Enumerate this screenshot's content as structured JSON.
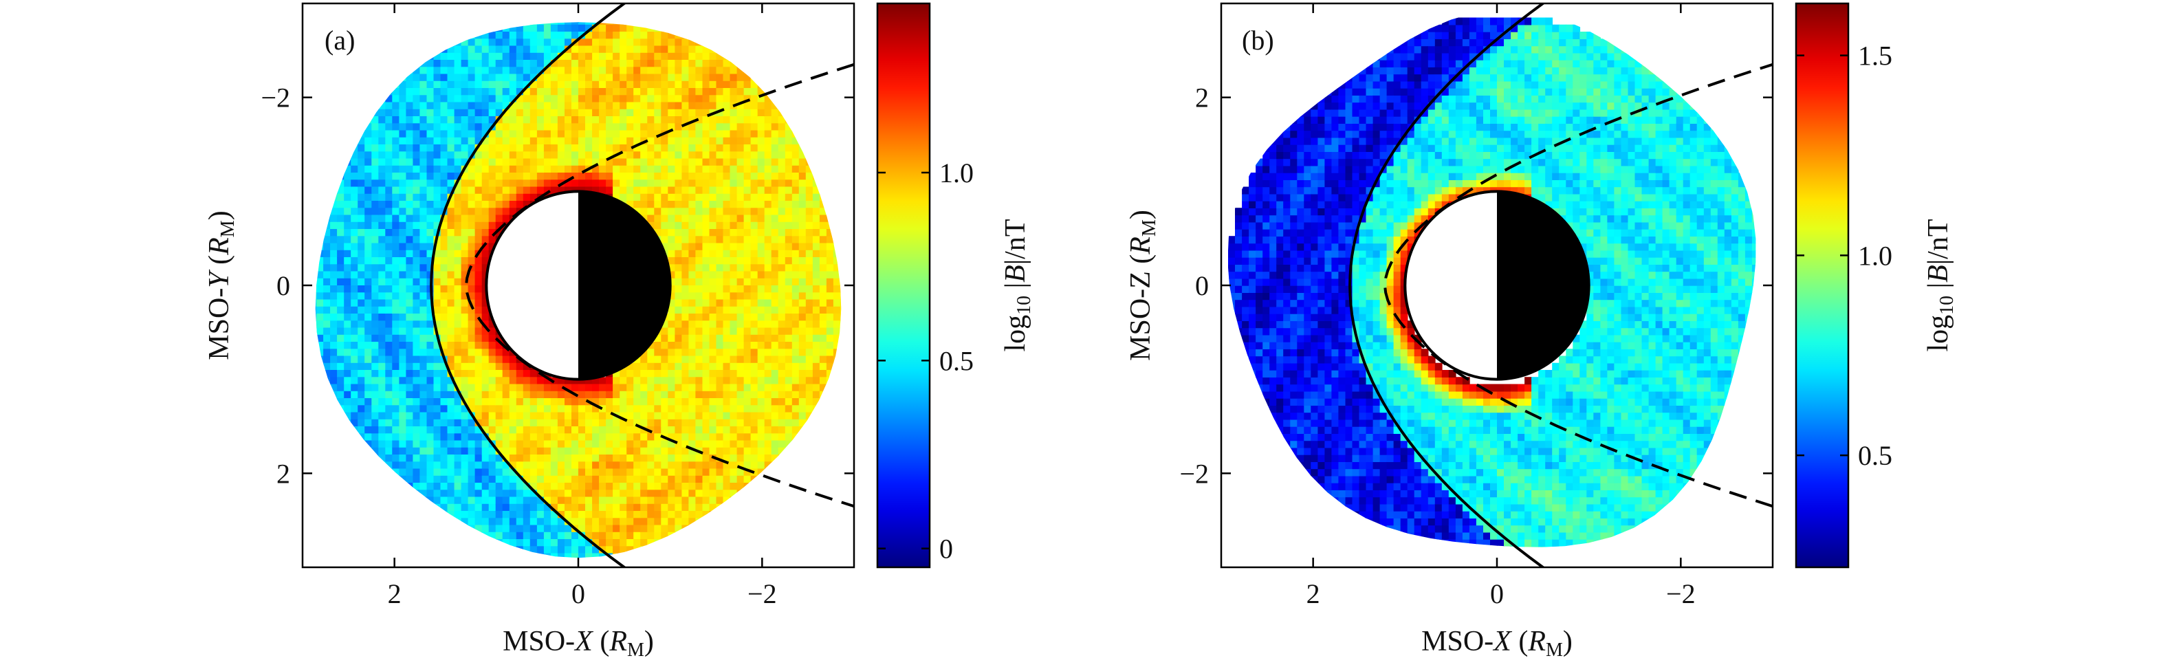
{
  "chart_data": [
    {
      "panel_label": "(a)",
      "type": "heatmap",
      "xlabel": {
        "prefix": "MSO-",
        "var": "X",
        "open": " (",
        "unit": "R",
        "sub": "M",
        "close": ")"
      },
      "ylabel": {
        "prefix": "MSO-",
        "var": "Y",
        "open": " (",
        "unit": "R",
        "sub": "M",
        "close": ")"
      },
      "xlim": [
        3,
        -3
      ],
      "ylim": [
        -3,
        3
      ],
      "y_inverted": true,
      "xticks": [
        2,
        0,
        -2
      ],
      "xtick_labels": [
        "2",
        "0",
        "−2"
      ],
      "yticks": [
        -2,
        0,
        2
      ],
      "ytick_labels": [
        "−2",
        "0",
        "2"
      ],
      "planet_radius": 1,
      "data_region_radius": 2.85,
      "colorbar": {
        "label": {
          "pre": "log",
          "sub": "10",
          "mid": " |",
          "var": "B",
          "post": "|/nT"
        },
        "range": [
          -0.05,
          1.45
        ],
        "ticks": [
          0,
          0.5,
          1.0
        ],
        "tick_labels": [
          "0",
          "0.5",
          "1.0"
        ],
        "colormap": "jet"
      },
      "field_summary": {
        "upstream_solar_wind": 0.45,
        "magnetosheath": 0.9,
        "near_planet_maximum": 1.4
      },
      "bow_shock": {
        "style": "solid",
        "color": "#000000",
        "x_nose": 1.6,
        "x_at_edge": -0.5,
        "y_at_edge": 3.0
      },
      "magnetopause": {
        "style": "dashed",
        "color": "#000000",
        "x_nose": 1.22,
        "x_end": -3.0,
        "y_end": 2.35
      }
    },
    {
      "panel_label": "(b)",
      "type": "heatmap",
      "xlabel": {
        "prefix": "MSO-",
        "var": "X",
        "open": " (",
        "unit": "R",
        "sub": "M",
        "close": ")"
      },
      "ylabel": {
        "prefix": "MSO-Z",
        "var": "",
        "open": " (",
        "unit": "R",
        "sub": "M",
        "close": ")"
      },
      "xlim": [
        3,
        -3
      ],
      "ylim": [
        3,
        -3
      ],
      "y_inverted": false,
      "xticks": [
        2,
        0,
        -2
      ],
      "xtick_labels": [
        "2",
        "0",
        "−2"
      ],
      "yticks": [
        2,
        0,
        -2
      ],
      "ytick_labels": [
        "2",
        "0",
        "−2"
      ],
      "planet_radius": 1,
      "data_region_radius": 2.85,
      "colorbar": {
        "label": {
          "pre": "log",
          "sub": "10",
          "mid": " |",
          "var": "B",
          "post": "|/nT"
        },
        "range": [
          0.22,
          1.63
        ],
        "ticks": [
          0.5,
          1.0,
          1.5
        ],
        "tick_labels": [
          "0.5",
          "1.0",
          "1.5"
        ],
        "colormap": "jet"
      },
      "field_summary": {
        "upstream_solar_wind": 0.4,
        "magnetosheath": 0.75,
        "near_planet_maximum": 1.6
      },
      "bow_shock": {
        "style": "solid",
        "color": "#000000",
        "x_nose": 1.6,
        "x_at_edge": -0.5,
        "y_at_edge": 3.0
      },
      "magnetopause": {
        "style": "dashed",
        "color": "#000000",
        "x_nose": 1.22,
        "x_end": -3.0,
        "y_end": 2.35
      }
    }
  ]
}
